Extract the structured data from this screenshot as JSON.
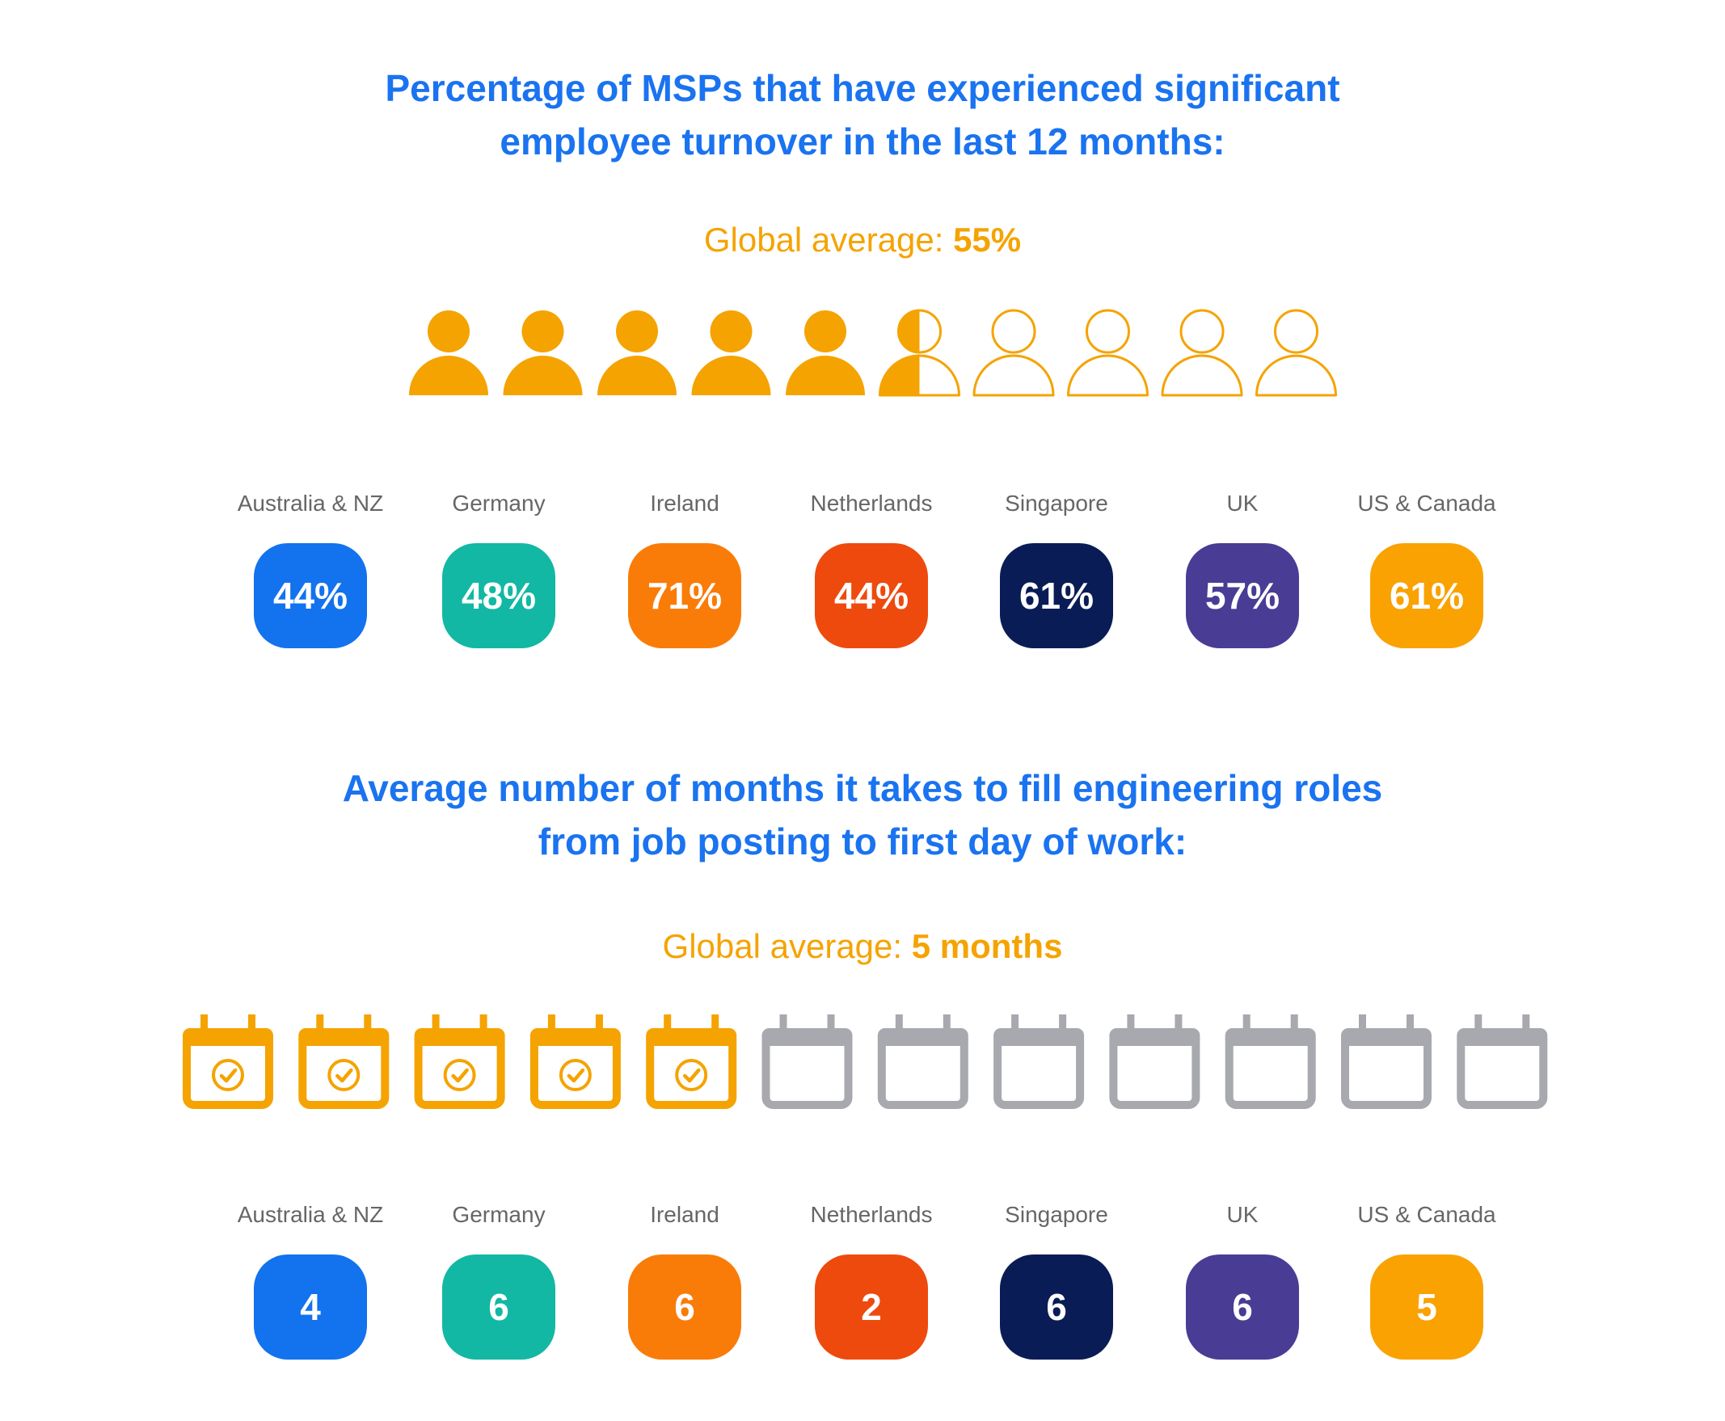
{
  "colors": {
    "title": "#1a73f0",
    "accent": "#f5a300",
    "inactive": "#a7a9ae",
    "tiles": [
      "#1372ee",
      "#12b8a3",
      "#f97c08",
      "#ee4a0e",
      "#0a1c55",
      "#493c95",
      "#f9a202"
    ]
  },
  "chart_data": [
    {
      "type": "pictogram",
      "title": "Percentage of MSPs that have experienced significant employee turnover in the last 12 months:",
      "title_lines": [
        "Percentage of MSPs that have experienced significant",
        "employee turnover in the last 12 months:"
      ],
      "average_label": "Global average: ",
      "average_value": "55%",
      "average": 55,
      "icon": "person-icon",
      "icon_count": 10,
      "categories": [
        "Australia & NZ",
        "Germany",
        "Ireland",
        "Netherlands",
        "Singapore",
        "UK",
        "US & Canada"
      ],
      "values": [
        44,
        48,
        71,
        44,
        61,
        57,
        61
      ],
      "value_labels": [
        "44%",
        "48%",
        "71%",
        "44%",
        "61%",
        "57%",
        "61%"
      ]
    },
    {
      "type": "pictogram",
      "title": "Average number of months it takes to fill engineering roles from job posting to first day of work:",
      "title_lines": [
        "Average number of months it takes to fill engineering roles",
        "from job posting to first day of work:"
      ],
      "average_label": "Global average: ",
      "average_value": "5 months",
      "average": 5,
      "icon": "calendar-icon",
      "icon_count": 12,
      "categories": [
        "Australia & NZ",
        "Germany",
        "Ireland",
        "Netherlands",
        "Singapore",
        "UK",
        "US & Canada"
      ],
      "values": [
        4,
        6,
        6,
        2,
        6,
        6,
        5
      ],
      "value_labels": [
        "4",
        "6",
        "6",
        "2",
        "6",
        "6",
        "5"
      ]
    }
  ]
}
